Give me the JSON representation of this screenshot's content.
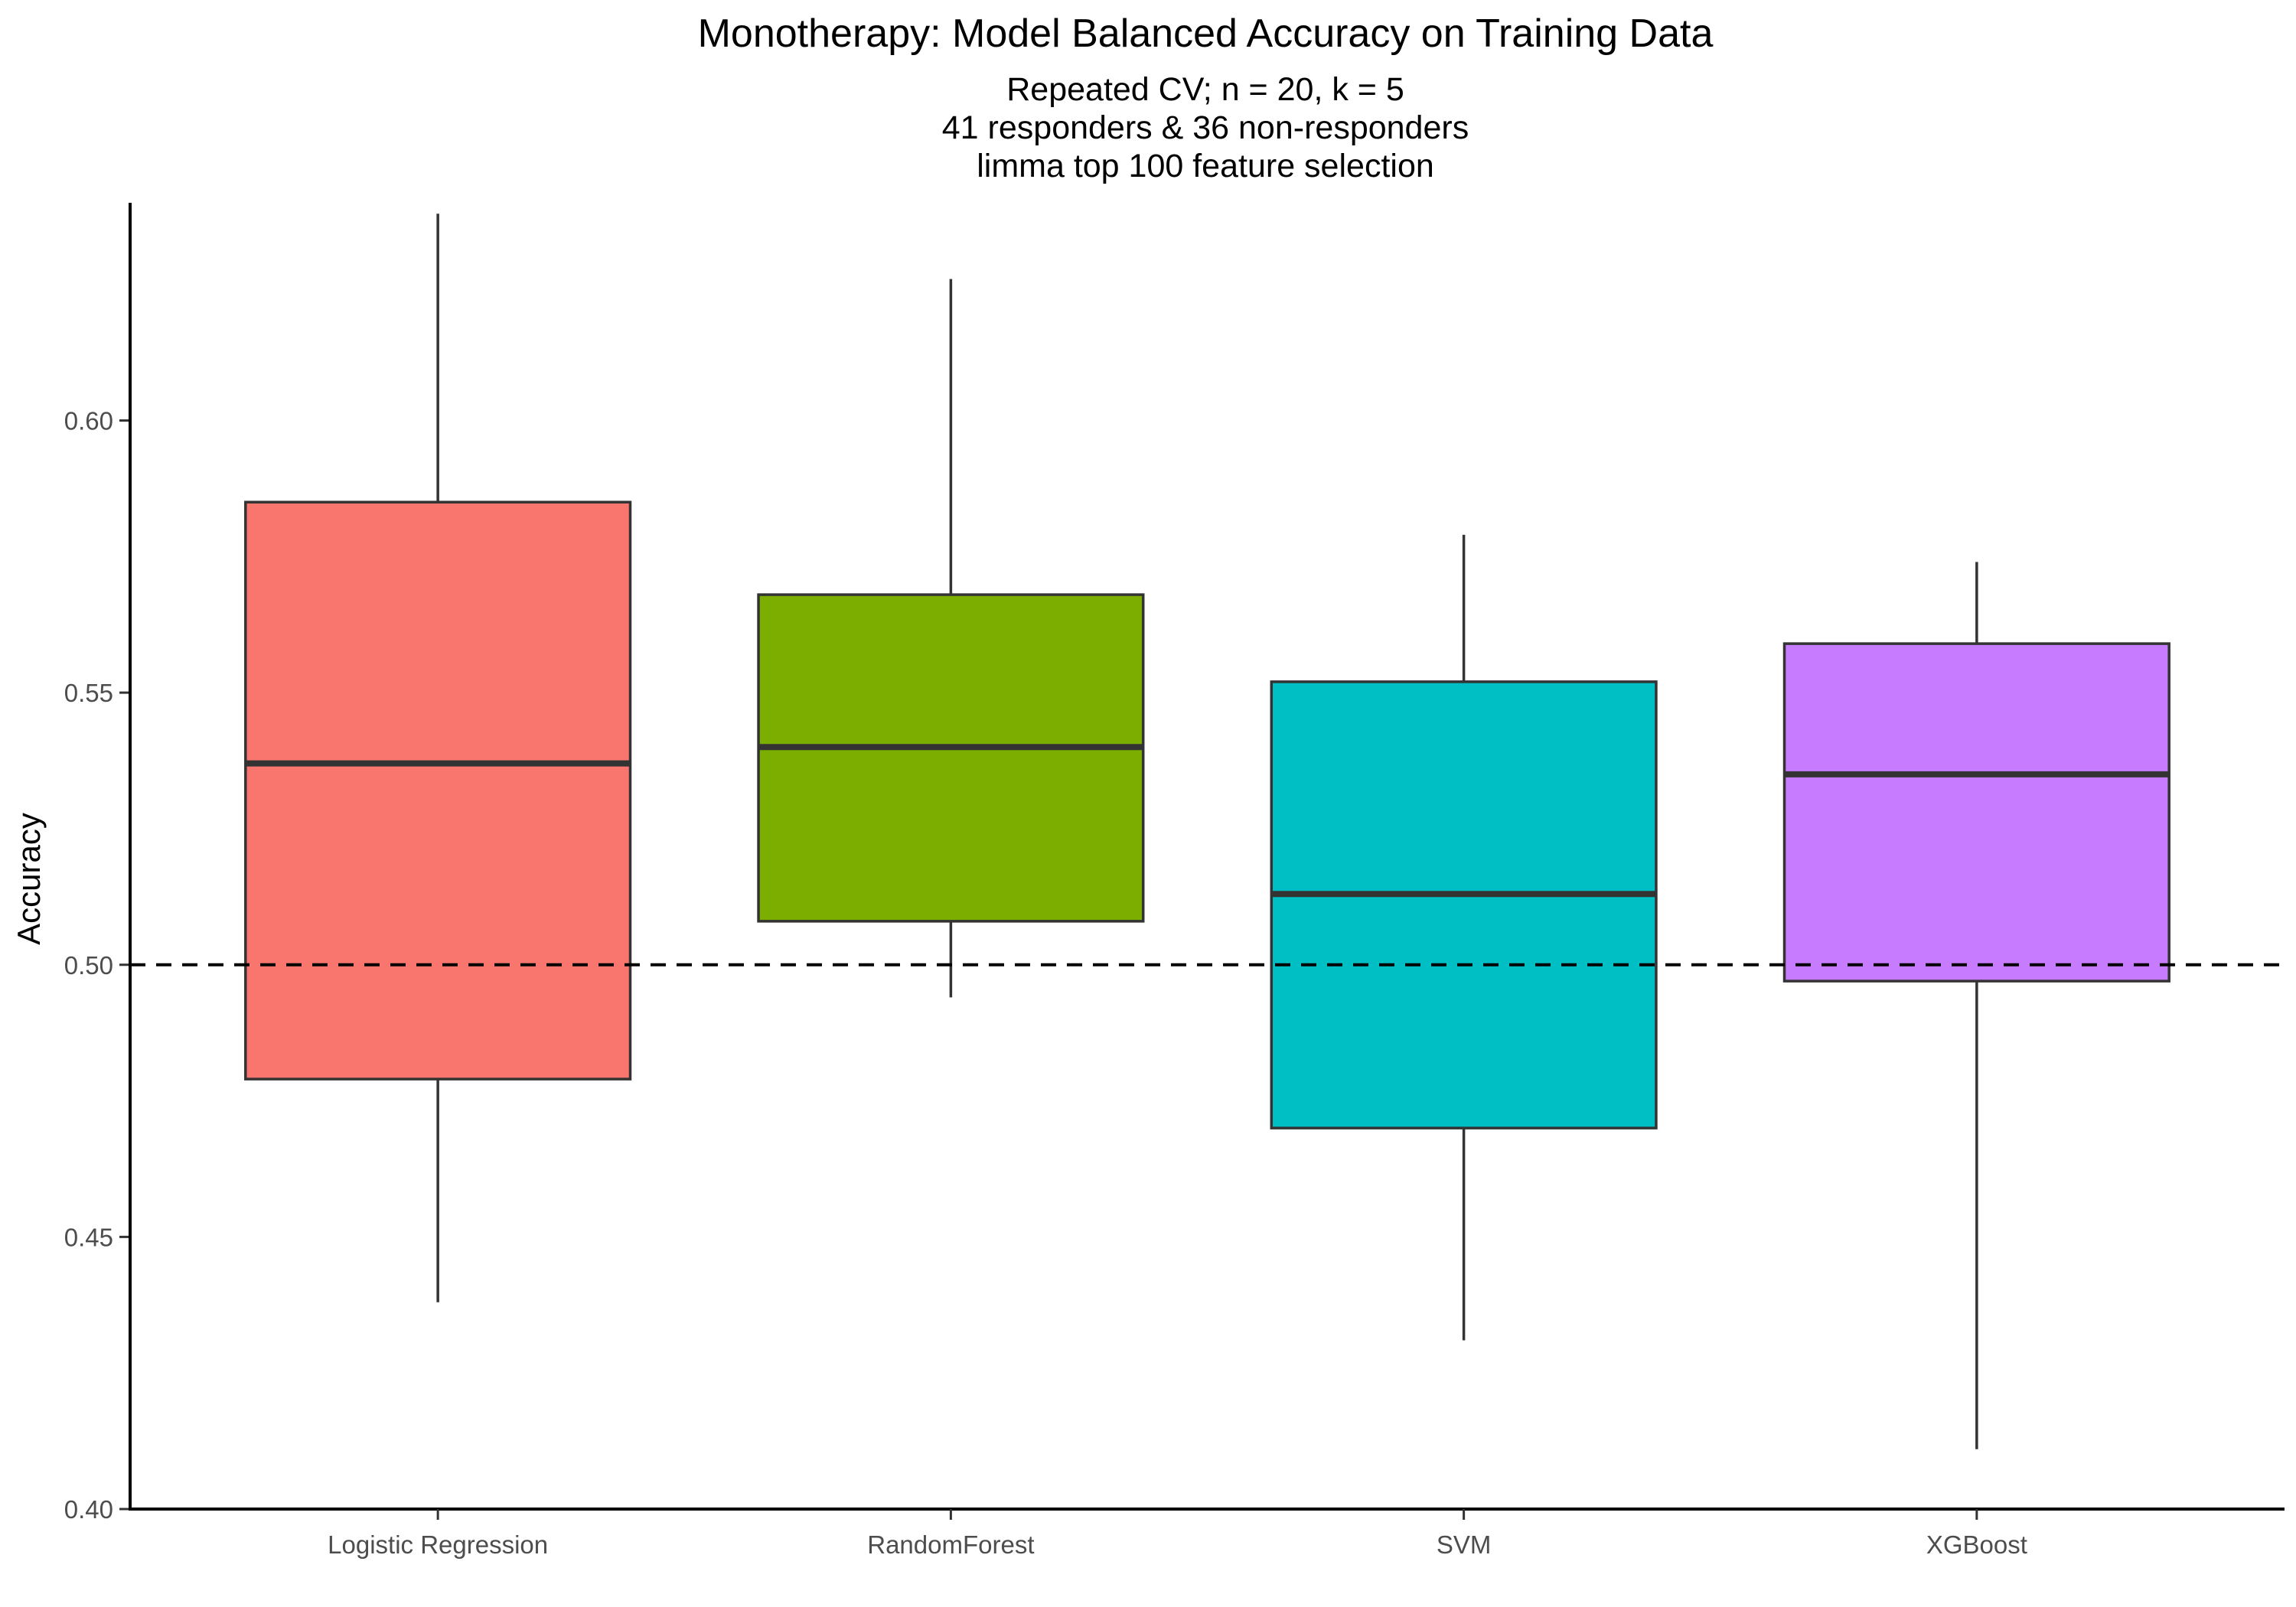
{
  "chart_data": {
    "type": "box",
    "title": "Monotherapy: Model Balanced Accuracy on Training Data",
    "subtitle": [
      "Repeated CV; n = 20, k = 5",
      "41 responders & 36 non-responders",
      "limma top 100 feature selection"
    ],
    "xlabel": "",
    "ylabel": "Accuracy",
    "ylim": [
      0.4,
      0.64
    ],
    "yticks": [
      0.4,
      0.45,
      0.5,
      0.55,
      0.6
    ],
    "ytick_labels": [
      "0.40",
      "0.45",
      "0.50",
      "0.55",
      "0.60"
    ],
    "reference_line": 0.5,
    "grid": false,
    "legend": "none",
    "categories": [
      "Logistic Regression",
      "RandomForest",
      "SVM",
      "XGBoost"
    ],
    "boxes": [
      {
        "category": "Logistic Regression",
        "min": 0.438,
        "q1": 0.479,
        "median": 0.537,
        "q3": 0.585,
        "max": 0.638,
        "color": "#F8766D"
      },
      {
        "category": "RandomForest",
        "min": 0.494,
        "q1": 0.508,
        "median": 0.54,
        "q3": 0.568,
        "max": 0.626,
        "color": "#7CAE00"
      },
      {
        "category": "SVM",
        "min": 0.431,
        "q1": 0.47,
        "median": 0.513,
        "q3": 0.552,
        "max": 0.579,
        "color": "#00BFC4"
      },
      {
        "category": "XGBoost",
        "min": 0.411,
        "q1": 0.497,
        "median": 0.535,
        "q3": 0.559,
        "max": 0.574,
        "color": "#C77CFF"
      }
    ]
  }
}
